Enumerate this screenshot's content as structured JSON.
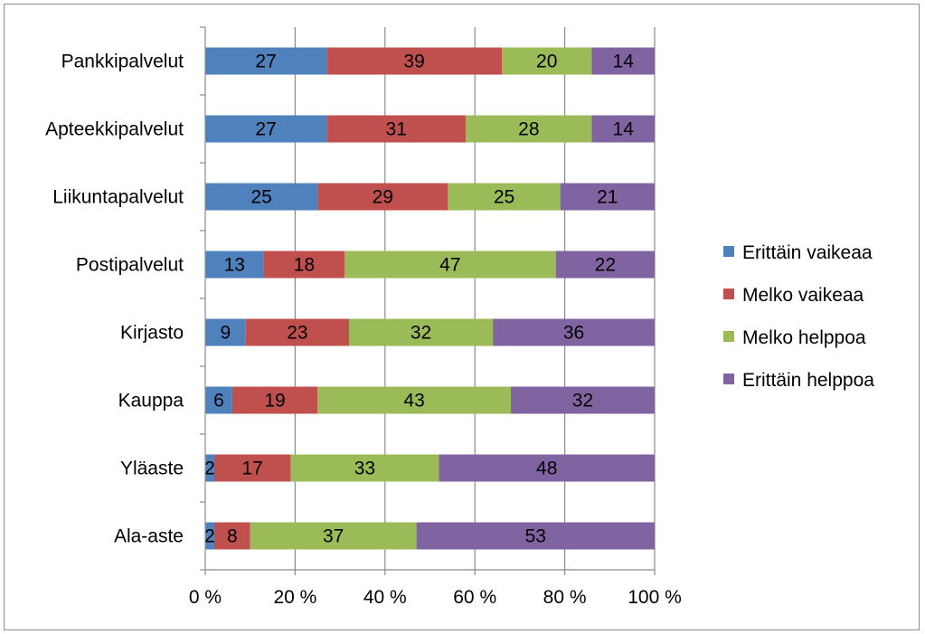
{
  "chart_data": {
    "type": "bar",
    "orientation": "horizontal",
    "stacked": "percent",
    "categories": [
      "Pankkipalvelut",
      "Apteekkipalvelut",
      "Liikuntapalvelut",
      "Postipalvelut",
      "Kirjasto",
      "Kauppa",
      "Yläaste",
      "Ala-aste"
    ],
    "series": [
      {
        "name": "Erittäin vaikeaa",
        "color": "#4f81bd",
        "values": [
          27,
          27,
          25,
          13,
          9,
          6,
          2,
          2
        ]
      },
      {
        "name": "Melko vaikeaa",
        "color": "#c0504d",
        "values": [
          39,
          31,
          29,
          18,
          23,
          19,
          17,
          8
        ]
      },
      {
        "name": "Melko helppoa",
        "color": "#9bbb59",
        "values": [
          20,
          28,
          25,
          47,
          32,
          43,
          33,
          37
        ]
      },
      {
        "name": "Erittäin helppoa",
        "color": "#8064a2",
        "values": [
          14,
          14,
          21,
          22,
          36,
          32,
          48,
          53
        ]
      }
    ],
    "xticks": [
      "0 %",
      "20 %",
      "40 %",
      "60 %",
      "80 %",
      "100 %"
    ],
    "xlim": [
      0,
      100
    ],
    "grid": true,
    "legend": "right",
    "title": "",
    "xlabel": "",
    "ylabel": ""
  }
}
